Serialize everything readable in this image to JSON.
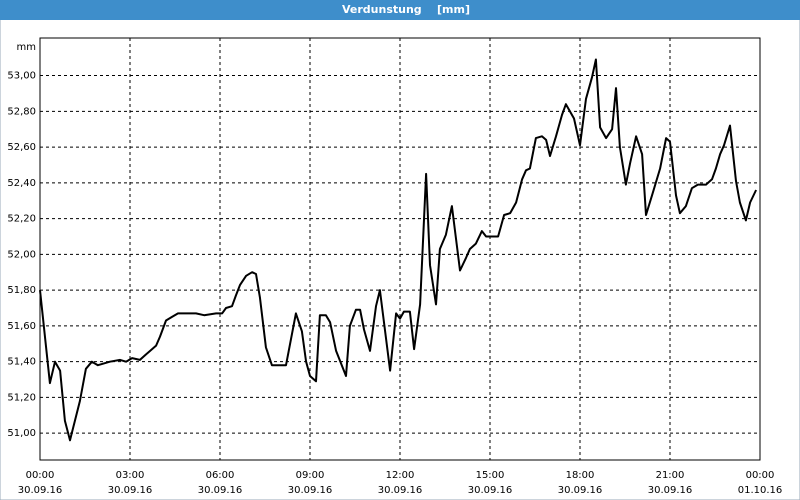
{
  "chart_data": {
    "type": "line",
    "title": "Verdunstung    [mm]",
    "y_unit": "mm",
    "x": [
      0,
      0.33,
      0.5,
      0.67,
      0.83,
      1,
      1.33,
      1.53,
      1.73,
      1.93,
      2.13,
      2.33,
      2.67,
      2.87,
      3.07,
      3.33,
      3.53,
      3.67,
      3.87,
      4,
      4.2,
      4.4,
      4.6,
      5.2,
      5.47,
      5.87,
      6.07,
      6.2,
      6.4,
      6.53,
      6.67,
      6.87,
      7.07,
      7.2,
      7.33,
      7.53,
      7.73,
      7.93,
      8.2,
      8.53,
      8.73,
      8.87,
      9,
      9.2,
      9.33,
      9.53,
      9.67,
      9.87,
      10.2,
      10.33,
      10.53,
      10.67,
      10.8,
      11,
      11.2,
      11.33,
      11.67,
      11.87,
      12,
      12.13,
      12.33,
      12.47,
      12.67,
      12.87,
      13,
      13.2,
      13.33,
      13.53,
      13.73,
      14,
      14.2,
      14.33,
      14.53,
      14.73,
      14.87,
      15.07,
      15.27,
      15.47,
      15.67,
      15.87,
      16.07,
      16.2,
      16.33,
      16.53,
      16.73,
      16.87,
      17,
      17.2,
      17.4,
      17.53,
      17.8,
      18,
      18.2,
      18.4,
      18.53,
      18.67,
      18.87,
      19.07,
      19.2,
      19.33,
      19.53,
      19.67,
      19.87,
      20.07,
      20.2,
      20.4,
      20.67,
      20.87,
      21,
      21.2,
      21.33,
      21.53,
      21.73,
      21.93,
      22.2,
      22.4,
      22.53,
      22.67,
      22.8,
      23,
      23.2,
      23.33,
      23.53,
      23.67,
      23.87
    ],
    "series": [
      {
        "color": "#000000",
        "values": [
          51.8,
          51.28,
          51.4,
          51.35,
          51.07,
          50.96,
          51.18,
          51.36,
          51.4,
          51.38,
          51.39,
          51.4,
          51.41,
          51.4,
          51.42,
          51.41,
          51.44,
          51.46,
          51.49,
          51.54,
          51.63,
          51.65,
          51.67,
          51.67,
          51.66,
          51.67,
          51.67,
          51.7,
          51.71,
          51.77,
          51.83,
          51.88,
          51.9,
          51.89,
          51.76,
          51.48,
          51.38,
          51.38,
          51.38,
          51.67,
          51.57,
          51.4,
          51.32,
          51.29,
          51.66,
          51.66,
          51.62,
          51.46,
          51.32,
          51.6,
          51.69,
          51.69,
          51.58,
          51.46,
          51.71,
          51.8,
          51.35,
          51.67,
          51.64,
          51.68,
          51.68,
          51.47,
          51.72,
          52.45,
          51.94,
          51.72,
          52.03,
          52.11,
          52.27,
          51.91,
          51.98,
          52.03,
          52.06,
          52.13,
          52.1,
          52.1,
          52.1,
          52.22,
          52.23,
          52.29,
          52.42,
          52.47,
          52.48,
          52.65,
          52.66,
          52.64,
          52.55,
          52.66,
          52.78,
          52.84,
          52.76,
          52.61,
          52.87,
          52.99,
          53.09,
          52.71,
          52.65,
          52.7,
          52.93,
          52.6,
          52.39,
          52.51,
          52.66,
          52.56,
          52.22,
          52.33,
          52.48,
          52.65,
          52.63,
          52.33,
          52.23,
          52.27,
          52.37,
          52.39,
          52.39,
          52.42,
          52.48,
          52.56,
          52.61,
          52.72,
          52.41,
          52.29,
          52.19,
          52.29,
          52.36
        ]
      }
    ],
    "xlim": [
      0,
      24
    ],
    "xticks": [
      {
        "value": 0,
        "label": "00:00"
      },
      {
        "value": 3,
        "label": "03:00"
      },
      {
        "value": 6,
        "label": "06:00"
      },
      {
        "value": 9,
        "label": "09:00"
      },
      {
        "value": 12,
        "label": "12:00"
      },
      {
        "value": 15,
        "label": "15:00"
      },
      {
        "value": 18,
        "label": "18:00"
      },
      {
        "value": 21,
        "label": "21:00"
      },
      {
        "value": 24,
        "label": "00:00"
      }
    ],
    "xtick_dates": [
      "30.09.16",
      "30.09.16",
      "30.09.16",
      "30.09.16",
      "30.09.16",
      "30.09.16",
      "30.09.16",
      "30.09.16",
      "01.10.16"
    ],
    "ylim": [
      50.85,
      53.21
    ],
    "yticks": [
      {
        "value": 51,
        "label": "51,00"
      },
      {
        "value": 51.2,
        "label": "51,20"
      },
      {
        "value": 51.4,
        "label": "51,40"
      },
      {
        "value": 51.6,
        "label": "51,60"
      },
      {
        "value": 51.8,
        "label": "51,80"
      },
      {
        "value": 52,
        "label": "52,00"
      },
      {
        "value": 52.2,
        "label": "52,20"
      },
      {
        "value": 52.4,
        "label": "52,40"
      },
      {
        "value": 52.6,
        "label": "52,60"
      },
      {
        "value": 52.8,
        "label": "52,80"
      },
      {
        "value": 53,
        "label": "53,00"
      }
    ],
    "grid": true
  }
}
